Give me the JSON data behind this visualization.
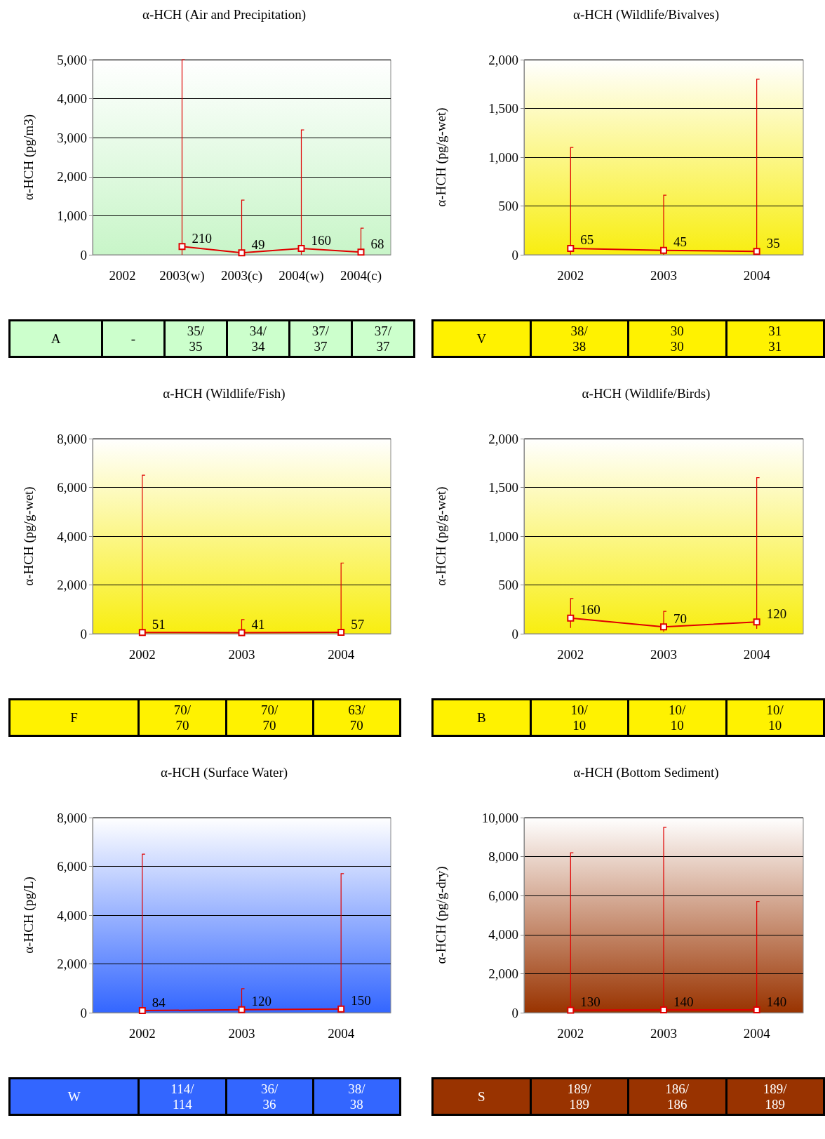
{
  "chart_data": [
    {
      "type": "line",
      "title": "α-HCH (Air and Precipitation)",
      "ylabel": "α-HCH (pg/m3)",
      "categories": [
        "2002",
        "2003(w)",
        "2003(c)",
        "2004(w)",
        "2004(c)"
      ],
      "series": [
        {
          "color": "#e00000",
          "values": [
            null,
            210,
            49,
            160,
            68
          ],
          "errors": [
            null,
            [
              0,
              5000
            ],
            [
              0,
              1400
            ],
            [
              0,
              3200
            ],
            [
              0,
              680
            ]
          ]
        }
      ],
      "ylim": [
        0,
        5000
      ],
      "yticks": [
        {
          "value": 0,
          "label": "0"
        },
        {
          "value": 1000,
          "label": "1,000"
        },
        {
          "value": 2000,
          "label": "2,000"
        },
        {
          "value": 3000,
          "label": "3,000"
        },
        {
          "value": 4000,
          "label": "4,000"
        },
        {
          "value": 5000,
          "label": "5,000"
        }
      ],
      "grid": "y",
      "marker": "square",
      "data_labels": true,
      "annotations": [
        "A",
        "-",
        "35/\n35",
        "34/\n34",
        "37/\n37",
        "37/\n37"
      ]
    },
    {
      "type": "line",
      "title": "α-HCH (Wildlife/Bivalves)",
      "ylabel": "α-HCH (pg/g-wet)",
      "categories": [
        "2002",
        "2003",
        "2004"
      ],
      "series": [
        {
          "color": "#e00000",
          "values": [
            65,
            45,
            35
          ],
          "errors": [
            [
              0,
              1100
            ],
            [
              0,
              610
            ],
            [
              0,
              1800
            ]
          ]
        }
      ],
      "ylim": [
        0,
        2000
      ],
      "yticks": [
        {
          "value": 0,
          "label": "0"
        },
        {
          "value": 500,
          "label": "500"
        },
        {
          "value": 1000,
          "label": "1,000"
        },
        {
          "value": 1500,
          "label": "1,500"
        },
        {
          "value": 2000,
          "label": "2,000"
        }
      ],
      "grid": "y",
      "marker": "square",
      "data_labels": true,
      "annotations": [
        "V",
        "38/\n38",
        "30\n30",
        "31\n31"
      ]
    },
    {
      "type": "line",
      "title": "α-HCH (Wildlife/Fish)",
      "ylabel": "α-HCH (pg/g-wet)",
      "categories": [
        "2002",
        "2003",
        "2004"
      ],
      "series": [
        {
          "color": "#e00000",
          "values": [
            51,
            41,
            57
          ],
          "errors": [
            [
              0,
              6500
            ],
            [
              0,
              580
            ],
            [
              0,
              2900
            ]
          ]
        }
      ],
      "ylim": [
        0,
        8000
      ],
      "yticks": [
        {
          "value": 0,
          "label": "0"
        },
        {
          "value": 2000,
          "label": "2,000"
        },
        {
          "value": 4000,
          "label": "4,000"
        },
        {
          "value": 6000,
          "label": "6,000"
        },
        {
          "value": 8000,
          "label": "8,000"
        }
      ],
      "grid": "y",
      "marker": "square",
      "data_labels": true,
      "annotations": [
        "F",
        "70/\n70",
        "70/\n70",
        "63/\n70"
      ]
    },
    {
      "type": "line",
      "title": "α-HCH (Wildlife/Birds)",
      "ylabel": "α-HCH (pg/g-wet)",
      "categories": [
        "2002",
        "2003",
        "2004"
      ],
      "series": [
        {
          "color": "#e00000",
          "values": [
            160,
            70,
            120
          ],
          "errors": [
            [
              60,
              360
            ],
            [
              20,
              230
            ],
            [
              50,
              1600
            ]
          ]
        }
      ],
      "ylim": [
        0,
        2000
      ],
      "yticks": [
        {
          "value": 0,
          "label": "0"
        },
        {
          "value": 500,
          "label": "500"
        },
        {
          "value": 1000,
          "label": "1,000"
        },
        {
          "value": 1500,
          "label": "1,500"
        },
        {
          "value": 2000,
          "label": "2,000"
        }
      ],
      "grid": "y",
      "marker": "square",
      "data_labels": true,
      "annotations": [
        "B",
        "10/\n10",
        "10/\n10",
        "10/\n10"
      ]
    },
    {
      "type": "line",
      "title": "α-HCH (Surface Water)",
      "ylabel": "α-HCH (pg/L)",
      "categories": [
        "2002",
        "2003",
        "2004"
      ],
      "series": [
        {
          "color": "#e00000",
          "values": [
            84,
            120,
            150
          ],
          "errors": [
            [
              0,
              6500
            ],
            [
              0,
              980
            ],
            [
              0,
              5700
            ]
          ]
        }
      ],
      "ylim": [
        0,
        8000
      ],
      "yticks": [
        {
          "value": 0,
          "label": "0"
        },
        {
          "value": 2000,
          "label": "2,000"
        },
        {
          "value": 4000,
          "label": "4,000"
        },
        {
          "value": 6000,
          "label": "6,000"
        },
        {
          "value": 8000,
          "label": "8,000"
        }
      ],
      "grid": "y",
      "marker": "square",
      "data_labels": true,
      "annotations": [
        "W",
        "114/\n114",
        "36/\n36",
        "38/\n38"
      ]
    },
    {
      "type": "line",
      "title": "α-HCH (Bottom Sediment)",
      "ylabel": "α-HCH (pg/g-dry)",
      "categories": [
        "2002",
        "2003",
        "2004"
      ],
      "series": [
        {
          "color": "#e00000",
          "values": [
            130,
            140,
            140
          ],
          "errors": [
            [
              0,
              8200
            ],
            [
              0,
              9500
            ],
            [
              0,
              5700
            ]
          ]
        }
      ],
      "ylim": [
        0,
        10000
      ],
      "yticks": [
        {
          "value": 0,
          "label": "0"
        },
        {
          "value": 2000,
          "label": "2,000"
        },
        {
          "value": 4000,
          "label": "4,000"
        },
        {
          "value": 6000,
          "label": "6,000"
        },
        {
          "value": 8000,
          "label": "8,000"
        },
        {
          "value": 10000,
          "label": "10,000"
        }
      ],
      "grid": "y",
      "marker": "square",
      "data_labels": true,
      "annotations": [
        "S",
        "189/\n189",
        "186/\n186",
        "189/\n189"
      ]
    }
  ]
}
